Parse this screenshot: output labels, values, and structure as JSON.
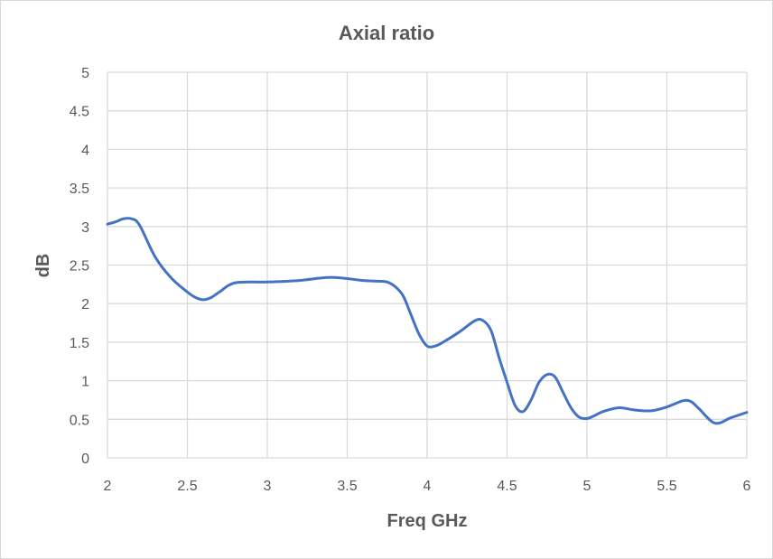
{
  "chart_data": {
    "type": "line",
    "title": "Axial ratio",
    "xlabel": "Freq GHz",
    "ylabel": "dB",
    "xlim": [
      2,
      6
    ],
    "ylim": [
      0,
      5
    ],
    "x_ticks": [
      "2",
      "2.5",
      "3",
      "3.5",
      "4",
      "4.5",
      "5",
      "5.5",
      "6"
    ],
    "y_ticks": [
      "0",
      "0.5",
      "1",
      "1.5",
      "2",
      "2.5",
      "3",
      "3.5",
      "4",
      "4.5",
      "5"
    ],
    "grid": true,
    "legend": "none",
    "series": [
      {
        "color": "#4472c4",
        "x": [
          2.0,
          2.05,
          2.1,
          2.15,
          2.2,
          2.3,
          2.4,
          2.5,
          2.55,
          2.6,
          2.65,
          2.7,
          2.8,
          3.0,
          3.2,
          3.4,
          3.6,
          3.7,
          3.75,
          3.8,
          3.85,
          3.9,
          3.95,
          4.0,
          4.05,
          4.1,
          4.2,
          4.3,
          4.35,
          4.4,
          4.45,
          4.5,
          4.55,
          4.6,
          4.65,
          4.7,
          4.75,
          4.8,
          4.85,
          4.9,
          4.95,
          5.0,
          5.05,
          5.1,
          5.2,
          5.3,
          5.4,
          5.5,
          5.6,
          5.65,
          5.7,
          5.8,
          5.9,
          6.0
        ],
        "y": [
          3.03,
          3.06,
          3.1,
          3.1,
          3.02,
          2.6,
          2.33,
          2.15,
          2.08,
          2.05,
          2.08,
          2.15,
          2.27,
          2.28,
          2.3,
          2.34,
          2.3,
          2.29,
          2.28,
          2.22,
          2.1,
          1.85,
          1.6,
          1.45,
          1.45,
          1.5,
          1.63,
          1.78,
          1.78,
          1.65,
          1.3,
          0.98,
          0.68,
          0.6,
          0.75,
          0.98,
          1.08,
          1.05,
          0.85,
          0.65,
          0.53,
          0.51,
          0.55,
          0.6,
          0.65,
          0.62,
          0.61,
          0.66,
          0.74,
          0.73,
          0.64,
          0.45,
          0.52,
          0.59
        ]
      }
    ]
  }
}
